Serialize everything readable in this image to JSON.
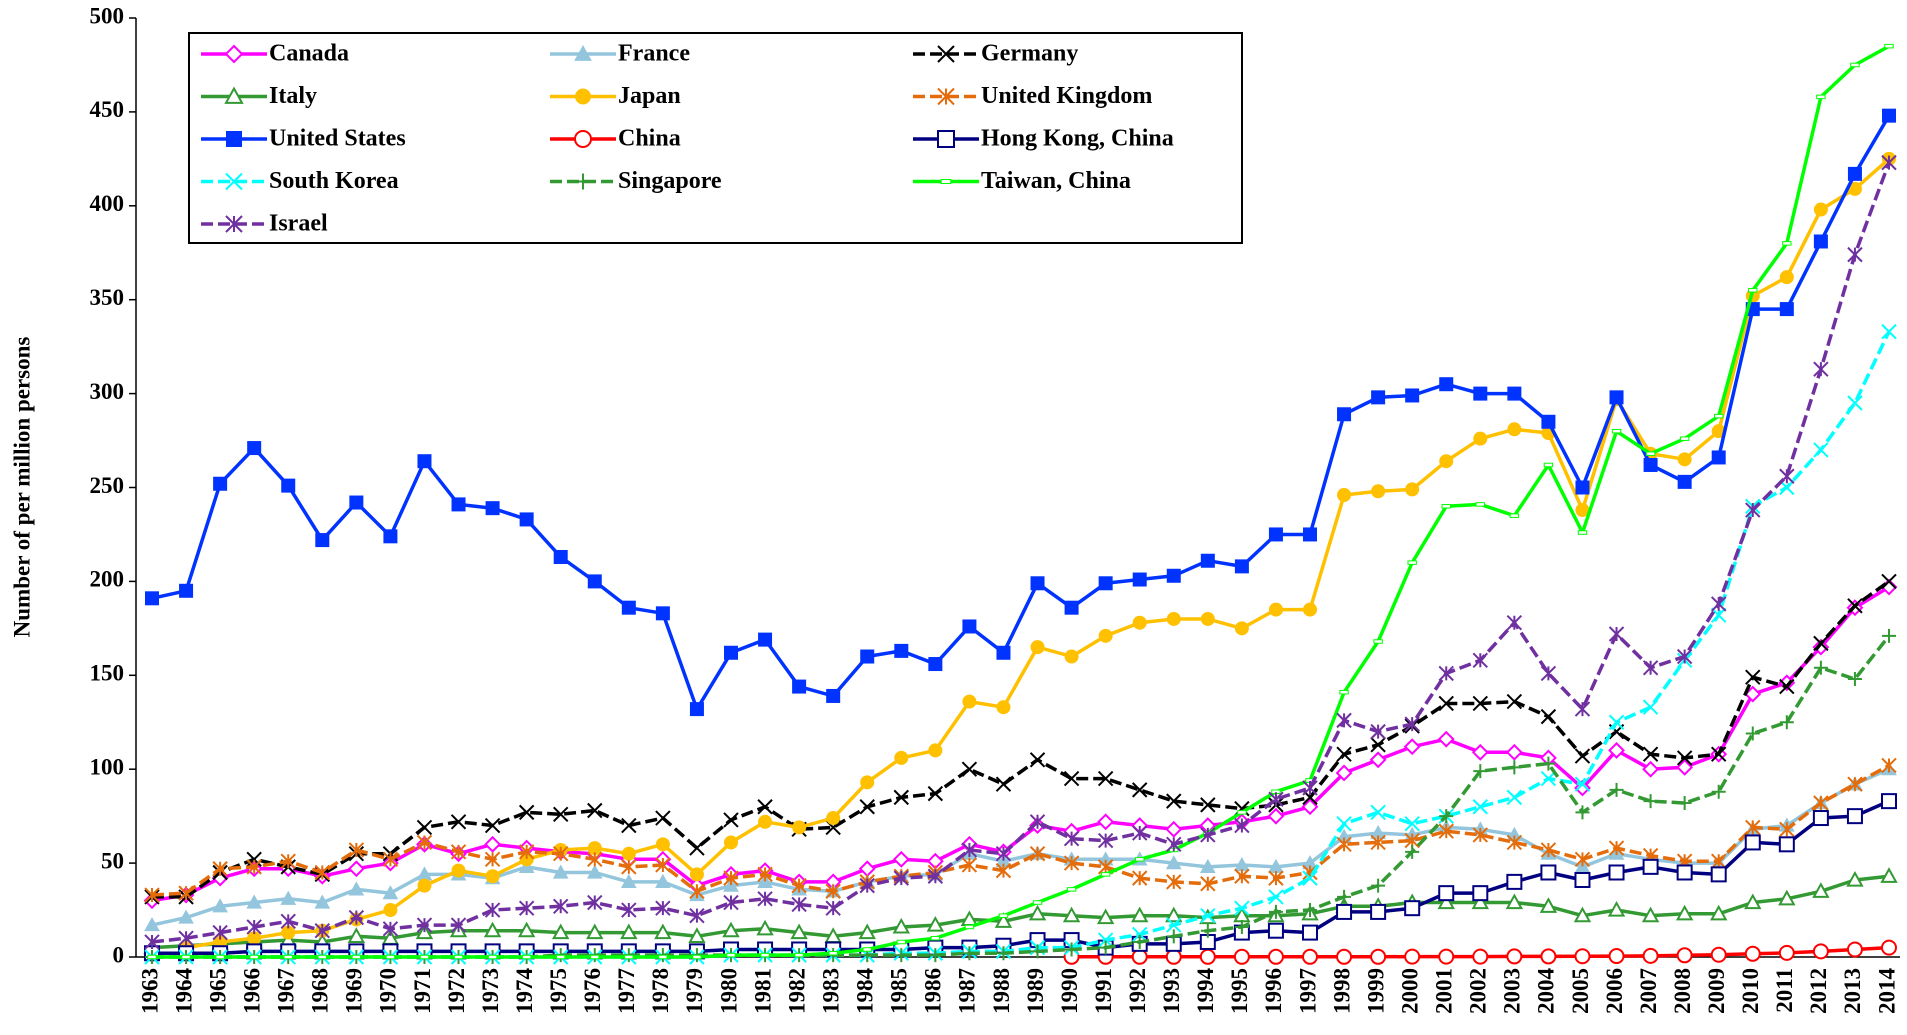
{
  "chart_data": {
    "type": "line",
    "ylabel": "Number of per million persons",
    "categories": [
      "1963",
      "1964",
      "1965",
      "1966",
      "1967",
      "1968",
      "1969",
      "1970",
      "1971",
      "1972",
      "1973",
      "1974",
      "1975",
      "1976",
      "1977",
      "1978",
      "1979",
      "1980",
      "1981",
      "1982",
      "1983",
      "1984",
      "1985",
      "1986",
      "1987",
      "1988",
      "1989",
      "1990",
      "1991",
      "1992",
      "1993",
      "1994",
      "1995",
      "1996",
      "1997",
      "1998",
      "1999",
      "2000",
      "2001",
      "2002",
      "2003",
      "2004",
      "2005",
      "2006",
      "2007",
      "2008",
      "2009",
      "2010",
      "2011",
      "2012",
      "2013",
      "2014"
    ],
    "ylim": [
      0,
      500
    ],
    "yticks": [
      0,
      50,
      100,
      150,
      200,
      250,
      300,
      350,
      400,
      450,
      500
    ],
    "legend": "top-left",
    "series": [
      {
        "name": "Canada",
        "color": "#ff00ff",
        "marker": "diamond-open",
        "dashed": false,
        "values": [
          30,
          33,
          42,
          47,
          47,
          43,
          47,
          50,
          60,
          55,
          60,
          58,
          56,
          55,
          52,
          52,
          38,
          44,
          46,
          40,
          40,
          47,
          52,
          51,
          60,
          56,
          70,
          67,
          72,
          70,
          68,
          70,
          72,
          75,
          80,
          98,
          105,
          112,
          116,
          109,
          109,
          106,
          90,
          110,
          100,
          101,
          108,
          140,
          146,
          165,
          186,
          197
        ]
      },
      {
        "name": "France",
        "color": "#93c6dd",
        "marker": "triangle-filled",
        "dashed": false,
        "values": [
          17,
          21,
          27,
          29,
          31,
          29,
          36,
          34,
          44,
          44,
          42,
          48,
          45,
          45,
          40,
          40,
          33,
          38,
          40,
          36,
          35,
          40,
          43,
          44,
          55,
          51,
          55,
          52,
          52,
          52,
          50,
          48,
          49,
          48,
          50,
          64,
          66,
          65,
          69,
          68,
          65,
          55,
          48,
          55,
          52,
          50,
          50,
          68,
          70,
          82,
          92,
          100
        ]
      },
      {
        "name": "Germany",
        "color": "#000000",
        "marker": "x",
        "dashed": true,
        "values": [
          32,
          32,
          45,
          52,
          48,
          44,
          55,
          55,
          69,
          72,
          70,
          77,
          76,
          78,
          70,
          74,
          58,
          73,
          80,
          68,
          69,
          80,
          85,
          87,
          100,
          92,
          105,
          95,
          95,
          89,
          83,
          81,
          79,
          81,
          85,
          108,
          113,
          123,
          135,
          135,
          136,
          128,
          107,
          120,
          108,
          106,
          108,
          149,
          144,
          167,
          187,
          200
        ]
      },
      {
        "name": "Italy",
        "color": "#339933",
        "marker": "triangle-open",
        "dashed": false,
        "values": [
          5,
          6,
          7,
          8,
          9,
          8,
          11,
          10,
          13,
          14,
          14,
          14,
          13,
          13,
          13,
          13,
          11,
          14,
          15,
          13,
          11,
          13,
          16,
          17,
          20,
          19,
          23,
          22,
          21,
          22,
          22,
          21,
          22,
          22,
          23,
          27,
          27,
          29,
          29,
          29,
          29,
          27,
          22,
          25,
          22,
          23,
          23,
          29,
          31,
          35,
          41,
          43
        ]
      },
      {
        "name": "Japan",
        "color": "#ffc000",
        "marker": "circle-filled",
        "dashed": false,
        "values": [
          null,
          5,
          8,
          10,
          13,
          14,
          20,
          25,
          38,
          46,
          43,
          52,
          57,
          58,
          55,
          60,
          44,
          61,
          72,
          69,
          74,
          93,
          106,
          110,
          136,
          133,
          165,
          160,
          171,
          178,
          180,
          180,
          175,
          185,
          185,
          246,
          248,
          249,
          264,
          276,
          281,
          279,
          238,
          297,
          268,
          265,
          280,
          352,
          362,
          398,
          409,
          425
        ]
      },
      {
        "name": "United Kingdom",
        "color": "#e46c0a",
        "marker": "asterisk",
        "dashed": true,
        "values": [
          33,
          34,
          47,
          48,
          51,
          45,
          57,
          52,
          61,
          56,
          52,
          56,
          55,
          52,
          48,
          49,
          35,
          42,
          44,
          38,
          35,
          40,
          43,
          45,
          49,
          46,
          55,
          50,
          48,
          42,
          40,
          39,
          43,
          42,
          45,
          60,
          61,
          62,
          67,
          65,
          61,
          57,
          52,
          58,
          54,
          51,
          51,
          69,
          68,
          82,
          92,
          102
        ]
      },
      {
        "name": "United States",
        "color": "#0033ff",
        "marker": "square-filled",
        "dashed": false,
        "values": [
          191,
          195,
          252,
          271,
          251,
          222,
          242,
          224,
          264,
          241,
          239,
          233,
          213,
          200,
          186,
          183,
          132,
          162,
          169,
          144,
          139,
          160,
          163,
          156,
          176,
          162,
          199,
          186,
          199,
          201,
          203,
          211,
          208,
          225,
          225,
          289,
          298,
          299,
          305,
          300,
          300,
          285,
          250,
          298,
          262,
          253,
          266,
          345,
          345,
          381,
          417,
          448
        ]
      },
      {
        "name": "China",
        "color": "#ff0000",
        "marker": "circle-open",
        "dashed": false,
        "values": [
          null,
          null,
          null,
          null,
          null,
          null,
          null,
          null,
          null,
          null,
          null,
          null,
          null,
          null,
          null,
          null,
          null,
          null,
          null,
          null,
          null,
          null,
          null,
          null,
          null,
          null,
          null,
          0.1,
          0.1,
          0.1,
          0.1,
          0.1,
          0.1,
          0.1,
          0.1,
          0.1,
          0.1,
          0.2,
          0.2,
          0.2,
          0.3,
          0.3,
          0.4,
          0.5,
          0.6,
          0.9,
          1.2,
          1.7,
          2.2,
          3,
          4,
          5
        ]
      },
      {
        "name": "Hong Kong, China",
        "color": "#000080",
        "marker": "square-open",
        "dashed": false,
        "values": [
          2,
          2,
          2,
          3,
          3,
          3,
          3,
          3,
          3,
          3,
          3,
          3,
          3,
          3,
          3,
          3,
          3,
          4,
          4,
          4,
          4,
          4,
          4,
          5,
          5,
          6,
          9,
          9,
          5,
          7,
          7,
          8,
          13,
          14,
          13,
          24,
          24,
          26,
          34,
          34,
          40,
          45,
          41,
          45,
          48,
          45,
          44,
          61,
          60,
          74,
          75,
          83
        ]
      },
      {
        "name": "South Korea",
        "color": "#00ffff",
        "marker": "x",
        "dashed": true,
        "values": [
          0,
          0,
          0,
          0,
          0,
          0,
          0,
          0,
          0,
          0,
          0,
          0,
          0,
          0,
          0,
          0,
          0,
          1,
          1,
          1,
          1,
          1,
          2,
          2,
          3,
          3,
          5,
          5,
          9,
          12,
          17,
          22,
          26,
          32,
          42,
          71,
          77,
          71,
          75,
          80,
          85,
          95,
          92,
          125,
          133,
          158,
          182,
          240,
          250,
          270,
          295,
          333
        ]
      },
      {
        "name": "Singapore",
        "color": "#339933",
        "marker": "plus",
        "dashed": true,
        "values": [
          0,
          0,
          0,
          0,
          0,
          0,
          0,
          0,
          0,
          0,
          0,
          0,
          1,
          1,
          1,
          1,
          1,
          1,
          1,
          1,
          1,
          1,
          1,
          1,
          2,
          2,
          3,
          4,
          5,
          8,
          11,
          14,
          16,
          24,
          25,
          32,
          38,
          56,
          75,
          99,
          101,
          103,
          77,
          89,
          83,
          82,
          88,
          119,
          125,
          154,
          148,
          171
        ]
      },
      {
        "name": "Taiwan, China",
        "color": "#00ff00",
        "marker": "rect-small",
        "dashed": false,
        "values": [
          0,
          0,
          0,
          0,
          0,
          0,
          0,
          0,
          0,
          0,
          0,
          0,
          0,
          0,
          0,
          0,
          0,
          1,
          1,
          1,
          2,
          4,
          8,
          10,
          16,
          22,
          29,
          36,
          44,
          52,
          57,
          66,
          77,
          88,
          94,
          141,
          168,
          210,
          240,
          241,
          235,
          262,
          226,
          280,
          268,
          276,
          288,
          355,
          380,
          458,
          475,
          485
        ]
      },
      {
        "name": "Israel",
        "color": "#7030a0",
        "marker": "asterisk",
        "dashed": true,
        "values": [
          8,
          10,
          13,
          16,
          19,
          14,
          21,
          15,
          17,
          17,
          25,
          26,
          27,
          29,
          25,
          26,
          22,
          29,
          31,
          28,
          26,
          38,
          42,
          43,
          57,
          55,
          72,
          63,
          62,
          66,
          60,
          65,
          70,
          84,
          90,
          126,
          120,
          124,
          151,
          158,
          178,
          151,
          132,
          172,
          154,
          160,
          188,
          238,
          256,
          313,
          374,
          423
        ]
      }
    ]
  }
}
